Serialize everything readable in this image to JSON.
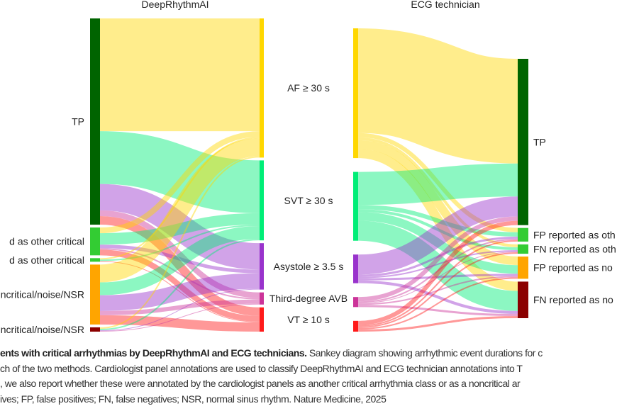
{
  "panels": [
    {
      "title": "DeepRhythmAI",
      "columns": [
        {
          "nodes": [
            {
              "id": "TP",
              "label": "TP",
              "color": "#006400"
            },
            {
              "id": "FPo",
              "label": "d as other critical",
              "color": "#33cc33"
            },
            {
              "id": "FNo",
              "label": "d as other critical",
              "color": "#33cc33"
            },
            {
              "id": "FPn",
              "label": "ncritical/noise/NSR",
              "color": "#ffa500"
            },
            {
              "id": "FNn",
              "label": "ncritical/noise/NSR",
              "color": "#8b0000"
            }
          ]
        },
        {
          "nodes": [
            {
              "id": "AF",
              "label": "AF ≥ 30 s",
              "color": "#ffd700"
            },
            {
              "id": "SVT",
              "label": "SVT ≥ 30 s",
              "color": "#00ee77"
            },
            {
              "id": "ASY",
              "label": "Asystole ≥ 3.5 s",
              "color": "#9933cc"
            },
            {
              "id": "AVB",
              "label": "Third-degree AVB",
              "color": "#cc3399"
            },
            {
              "id": "VT",
              "label": "VT ≥ 10 s",
              "color": "#ff1a1a"
            }
          ]
        }
      ],
      "links": [
        [
          "TP",
          "AF",
          158
        ],
        [
          "TP",
          "SVT",
          74
        ],
        [
          "TP",
          "ASY",
          37
        ],
        [
          "TP",
          "AVB",
          8
        ],
        [
          "TP",
          "VT",
          12
        ],
        [
          "FPo",
          "AF",
          8
        ],
        [
          "FPo",
          "SVT",
          16
        ],
        [
          "FPo",
          "ASY",
          5
        ],
        [
          "FPo",
          "AVB",
          2
        ],
        [
          "FPo",
          "VT",
          8
        ],
        [
          "FNo",
          "AF",
          2
        ],
        [
          "FNo",
          "SVT",
          2
        ],
        [
          "FNo",
          "VT",
          1
        ],
        [
          "FPn",
          "AF",
          25
        ],
        [
          "FPn",
          "SVT",
          18
        ],
        [
          "FPn",
          "ASY",
          22
        ],
        [
          "FPn",
          "AVB",
          6
        ],
        [
          "FPn",
          "VT",
          13
        ],
        [
          "FNn",
          "AF",
          2
        ],
        [
          "FNn",
          "SVT",
          2
        ],
        [
          "FNn",
          "ASY",
          1
        ],
        [
          "FNn",
          "AVB",
          1
        ]
      ]
    },
    {
      "title": "ECG technician",
      "columns": [
        {
          "nodes": [
            {
              "id": "AF",
              "color": "#ffd700"
            },
            {
              "id": "SVT",
              "color": "#00ee77"
            },
            {
              "id": "ASY",
              "color": "#9933cc"
            },
            {
              "id": "AVB",
              "color": "#cc3399"
            },
            {
              "id": "VT",
              "color": "#ff1a1a"
            }
          ]
        },
        {
          "nodes": [
            {
              "id": "TP",
              "label": "TP",
              "color": "#006400"
            },
            {
              "id": "FPo",
              "label": "FP reported as oth",
              "color": "#33cc33"
            },
            {
              "id": "FNo",
              "label": "FN reported as oth",
              "color": "#33cc33"
            },
            {
              "id": "FPn",
              "label": "FP reported as no",
              "color": "#ffa500"
            },
            {
              "id": "FNn",
              "label": "FN reported as no",
              "color": "#8b0000"
            }
          ]
        }
      ],
      "links": [
        [
          "AF",
          "TP",
          146
        ],
        [
          "AF",
          "FPo",
          6
        ],
        [
          "AF",
          "FNo",
          4
        ],
        [
          "AF",
          "FPn",
          12
        ],
        [
          "AF",
          "FNn",
          13
        ],
        [
          "SVT",
          "TP",
          46
        ],
        [
          "SVT",
          "FPo",
          6
        ],
        [
          "SVT",
          "FNo",
          4
        ],
        [
          "SVT",
          "FPn",
          12
        ],
        [
          "SVT",
          "FNn",
          28
        ],
        [
          "ASY",
          "TP",
          28
        ],
        [
          "ASY",
          "FPo",
          3
        ],
        [
          "ASY",
          "FNo",
          2
        ],
        [
          "ASY",
          "FPn",
          3
        ],
        [
          "ASY",
          "FNn",
          4
        ],
        [
          "AVB",
          "TP",
          6
        ],
        [
          "AVB",
          "FPo",
          2
        ],
        [
          "AVB",
          "FNo",
          1
        ],
        [
          "AVB",
          "FPn",
          2
        ],
        [
          "AVB",
          "FNn",
          3
        ],
        [
          "VT",
          "TP",
          6
        ],
        [
          "VT",
          "FPo",
          2
        ],
        [
          "VT",
          "FNo",
          2
        ],
        [
          "VT",
          "FPn",
          2
        ],
        [
          "VT",
          "FNn",
          3
        ]
      ]
    }
  ],
  "caption": {
    "line1_bold": "ents with critical arrhythmias by DeepRhythmAI and ECG technicians.",
    "line1_rest": " Sankey diagram showing arrhythmic event durations for c",
    "line2": "ch of the two methods. Cardiologist panel annotations are used to classify DeepRhythmAI and ECG technician annotations into T",
    "line3": ", we also report whether these were annotated by the cardiologist panels as another critical arrhythmia class or as a noncritical ar",
    "line4": "ives; FP, false positives; FN, false negatives; NSR, normal sinus rhythm. Nature Medicine, 2025"
  }
}
